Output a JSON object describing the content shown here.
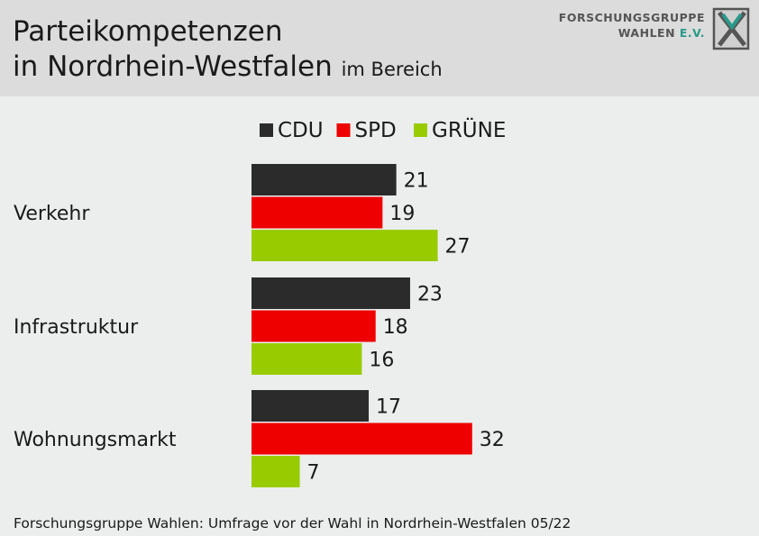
{
  "header": {
    "title_line1": "Parteikompetenzen",
    "title_line2": "in Nordrhein-Westfalen",
    "title_suffix": "im Bereich"
  },
  "logo": {
    "line1": "FORSCHUNGSGRUPPE",
    "line2_main": "WAHLEN",
    "line2_suffix": "E.V."
  },
  "footer": {
    "source": "Forschungsgruppe Wahlen: Umfrage vor der Wahl in Nordrhein-Westfalen 05/22"
  },
  "chart_data": {
    "type": "bar",
    "orientation": "horizontal",
    "categories": [
      "Verkehr",
      "Infrastruktur",
      "Wohnungsmarkt"
    ],
    "series": [
      {
        "name": "CDU",
        "color": "#2b2b2b",
        "values": [
          21,
          23,
          17
        ]
      },
      {
        "name": "SPD",
        "color": "#ee0000",
        "values": [
          19,
          18,
          32
        ]
      },
      {
        "name": "GRÜNE",
        "color": "#99cc00",
        "values": [
          27,
          16,
          7
        ]
      }
    ],
    "legend_position": "top-center",
    "grid": false,
    "data_labels": true
  }
}
